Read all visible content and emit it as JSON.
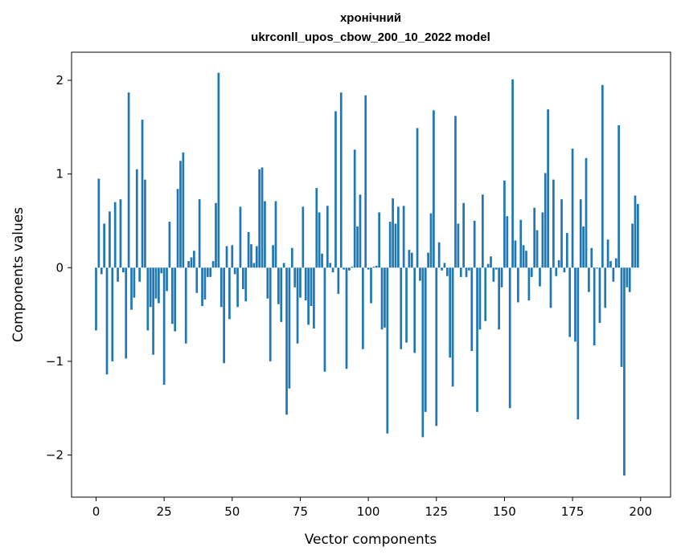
{
  "chart_data": {
    "type": "bar",
    "title": "хронічний",
    "subtitle": "ukrconll_upos_cbow_200_10_2022 model",
    "xlabel": "Vector components",
    "ylabel": "Components values",
    "xlim": [
      -9,
      211
    ],
    "ylim": [
      -2.45,
      2.3
    ],
    "xticks": [
      0,
      25,
      50,
      75,
      100,
      125,
      150,
      175,
      200
    ],
    "yticks": [
      -2,
      -1,
      0,
      1,
      2
    ],
    "xtick_labels": [
      "0",
      "25",
      "50",
      "75",
      "100",
      "125",
      "150",
      "175",
      "200"
    ],
    "ytick_labels": [
      "−2",
      "−1",
      "0",
      "1",
      "2"
    ],
    "bar_color": "#1f77b4",
    "grid": false,
    "x": [
      0,
      1,
      2,
      3,
      4,
      5,
      6,
      7,
      8,
      9,
      10,
      11,
      12,
      13,
      14,
      15,
      16,
      17,
      18,
      19,
      20,
      21,
      22,
      23,
      24,
      25,
      26,
      27,
      28,
      29,
      30,
      31,
      32,
      33,
      34,
      35,
      36,
      37,
      38,
      39,
      40,
      41,
      42,
      43,
      44,
      45,
      46,
      47,
      48,
      49,
      50,
      51,
      52,
      53,
      54,
      55,
      56,
      57,
      58,
      59,
      60,
      61,
      62,
      63,
      64,
      65,
      66,
      67,
      68,
      69,
      70,
      71,
      72,
      73,
      74,
      75,
      76,
      77,
      78,
      79,
      80,
      81,
      82,
      83,
      84,
      85,
      86,
      87,
      88,
      89,
      90,
      91,
      92,
      93,
      94,
      95,
      96,
      97,
      98,
      99,
      100,
      101,
      102,
      103,
      104,
      105,
      106,
      107,
      108,
      109,
      110,
      111,
      112,
      113,
      114,
      115,
      116,
      117,
      118,
      119,
      120,
      121,
      122,
      123,
      124,
      125,
      126,
      127,
      128,
      129,
      130,
      131,
      132,
      133,
      134,
      135,
      136,
      137,
      138,
      139,
      140,
      141,
      142,
      143,
      144,
      145,
      146,
      147,
      148,
      149,
      150,
      151,
      152,
      153,
      154,
      155,
      156,
      157,
      158,
      159,
      160,
      161,
      162,
      163,
      164,
      165,
      166,
      167,
      168,
      169,
      170,
      171,
      172,
      173,
      174,
      175,
      176,
      177,
      178,
      179,
      180,
      181,
      182,
      183,
      184,
      185,
      186,
      187,
      188,
      189,
      190,
      191,
      192,
      193,
      194,
      195,
      196,
      197,
      198,
      199
    ],
    "values": [
      -0.67,
      0.95,
      -0.07,
      0.47,
      -1.14,
      0.6,
      -1.0,
      0.7,
      -0.15,
      0.73,
      -0.05,
      -0.97,
      1.87,
      -0.45,
      -0.32,
      1.05,
      -0.15,
      1.58,
      0.94,
      -0.67,
      -0.42,
      -0.93,
      -0.33,
      -0.38,
      -0.06,
      -1.25,
      -0.25,
      0.49,
      -0.6,
      -0.68,
      0.84,
      1.14,
      1.23,
      -0.81,
      0.07,
      0.11,
      0.18,
      -0.27,
      0.73,
      -0.41,
      -0.34,
      -0.1,
      -0.1,
      0.07,
      0.69,
      2.08,
      -0.42,
      -1.02,
      0.23,
      -0.55,
      0.24,
      -0.07,
      -0.42,
      0.65,
      -0.23,
      -0.36,
      0.38,
      0.25,
      0.05,
      0.23,
      1.05,
      1.07,
      0.71,
      -0.33,
      -1.0,
      0.24,
      0.71,
      -0.39,
      -0.58,
      0.05,
      -1.57,
      -1.29,
      0.21,
      -0.21,
      -0.81,
      -0.32,
      0.65,
      -0.35,
      -0.61,
      -0.41,
      -0.65,
      0.85,
      0.59,
      0.15,
      -1.11,
      0.66,
      0.05,
      -0.05,
      1.67,
      -0.28,
      1.87,
      -0.02,
      -1.08,
      -0.03,
      0.01,
      1.26,
      0.44,
      0.78,
      -0.87,
      1.84,
      -0.02,
      -0.38,
      0.01,
      0.02,
      0.59,
      -0.66,
      -0.64,
      -1.77,
      0.49,
      0.74,
      0.47,
      0.65,
      -0.87,
      0.66,
      -0.8,
      0.19,
      0.16,
      -0.91,
      1.49,
      -0.14,
      -1.81,
      -1.54,
      0.16,
      0.58,
      1.68,
      -1.69,
      0.27,
      -0.03,
      0.05,
      -0.09,
      -0.96,
      -1.27,
      1.62,
      0.47,
      -0.1,
      0.69,
      -0.1,
      -0.03,
      -0.89,
      0.5,
      -1.54,
      -0.66,
      0.78,
      -0.57,
      0.04,
      0.12,
      -0.15,
      -0.02,
      -0.66,
      -0.21,
      0.93,
      0.55,
      -1.5,
      2.01,
      0.29,
      -0.37,
      0.51,
      0.24,
      0.18,
      -0.35,
      -0.1,
      0.64,
      0.4,
      -0.2,
      0.59,
      1.01,
      1.69,
      -0.43,
      0.94,
      -0.09,
      0.08,
      0.73,
      -0.05,
      0.37,
      -0.74,
      1.27,
      -0.79,
      -1.62,
      0.73,
      0.44,
      1.17,
      -0.26,
      0.21,
      -0.83,
      -0.01,
      -0.59,
      1.95,
      -0.43,
      0.3,
      0.07,
      -0.15,
      0.1,
      1.52,
      -1.06,
      -2.22,
      -0.21,
      -0.26,
      0.47,
      0.77,
      0.68
    ]
  }
}
